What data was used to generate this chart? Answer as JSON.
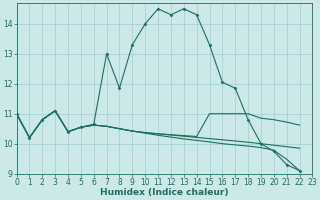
{
  "xlabel": "Humidex (Indice chaleur)",
  "bg_color": "#cce8e8",
  "grid_color": "#a8d4d4",
  "line_color": "#1a7060",
  "xlim": [
    0,
    23
  ],
  "ylim": [
    9,
    14.7
  ],
  "yticks": [
    9,
    10,
    11,
    12,
    13,
    14
  ],
  "xticks": [
    0,
    1,
    2,
    3,
    4,
    5,
    6,
    7,
    8,
    9,
    10,
    11,
    12,
    13,
    14,
    15,
    16,
    17,
    18,
    19,
    20,
    21,
    22,
    23
  ],
  "curve1_x": [
    0,
    1,
    2,
    3,
    4,
    5,
    6,
    7,
    8,
    9,
    10,
    11,
    12,
    13,
    14,
    15,
    16,
    17,
    18,
    19,
    20,
    21,
    22
  ],
  "curve1_y": [
    11.0,
    10.2,
    10.8,
    11.1,
    10.4,
    10.55,
    10.65,
    13.0,
    11.85,
    13.3,
    14.0,
    14.5,
    14.3,
    14.5,
    14.3,
    13.3,
    12.05,
    11.85,
    10.8,
    10.0,
    9.75,
    9.3,
    9.1
  ],
  "curve2_x": [
    0,
    1,
    2,
    3,
    4,
    5,
    6,
    7,
    8,
    9,
    10,
    11,
    12,
    13,
    14,
    15,
    16,
    17,
    18,
    19,
    20,
    21,
    22
  ],
  "curve2_y": [
    11.0,
    10.2,
    10.8,
    11.1,
    10.4,
    10.55,
    10.62,
    10.58,
    10.5,
    10.42,
    10.35,
    10.28,
    10.22,
    10.16,
    10.11,
    10.06,
    10.0,
    9.96,
    9.92,
    9.87,
    9.78,
    9.48,
    9.1
  ],
  "curve3_x": [
    0,
    1,
    2,
    3,
    4,
    5,
    6,
    7,
    8,
    9,
    10,
    11,
    12,
    13,
    14,
    15,
    16,
    17,
    18,
    19,
    20,
    21,
    22
  ],
  "curve3_y": [
    11.0,
    10.2,
    10.8,
    11.1,
    10.4,
    10.55,
    10.62,
    10.58,
    10.5,
    10.42,
    10.37,
    10.33,
    10.3,
    10.27,
    10.24,
    11.0,
    11.0,
    11.0,
    11.0,
    10.85,
    10.8,
    10.72,
    10.62
  ],
  "curve4_x": [
    0,
    1,
    2,
    3,
    4,
    5,
    6,
    7,
    8,
    9,
    10,
    11,
    12,
    13,
    14,
    15,
    16,
    17,
    18,
    19,
    20,
    21,
    22
  ],
  "curve4_y": [
    11.0,
    10.2,
    10.8,
    11.1,
    10.4,
    10.55,
    10.62,
    10.58,
    10.5,
    10.42,
    10.37,
    10.33,
    10.29,
    10.25,
    10.21,
    10.17,
    10.13,
    10.09,
    10.05,
    10.0,
    9.95,
    9.9,
    9.85
  ]
}
